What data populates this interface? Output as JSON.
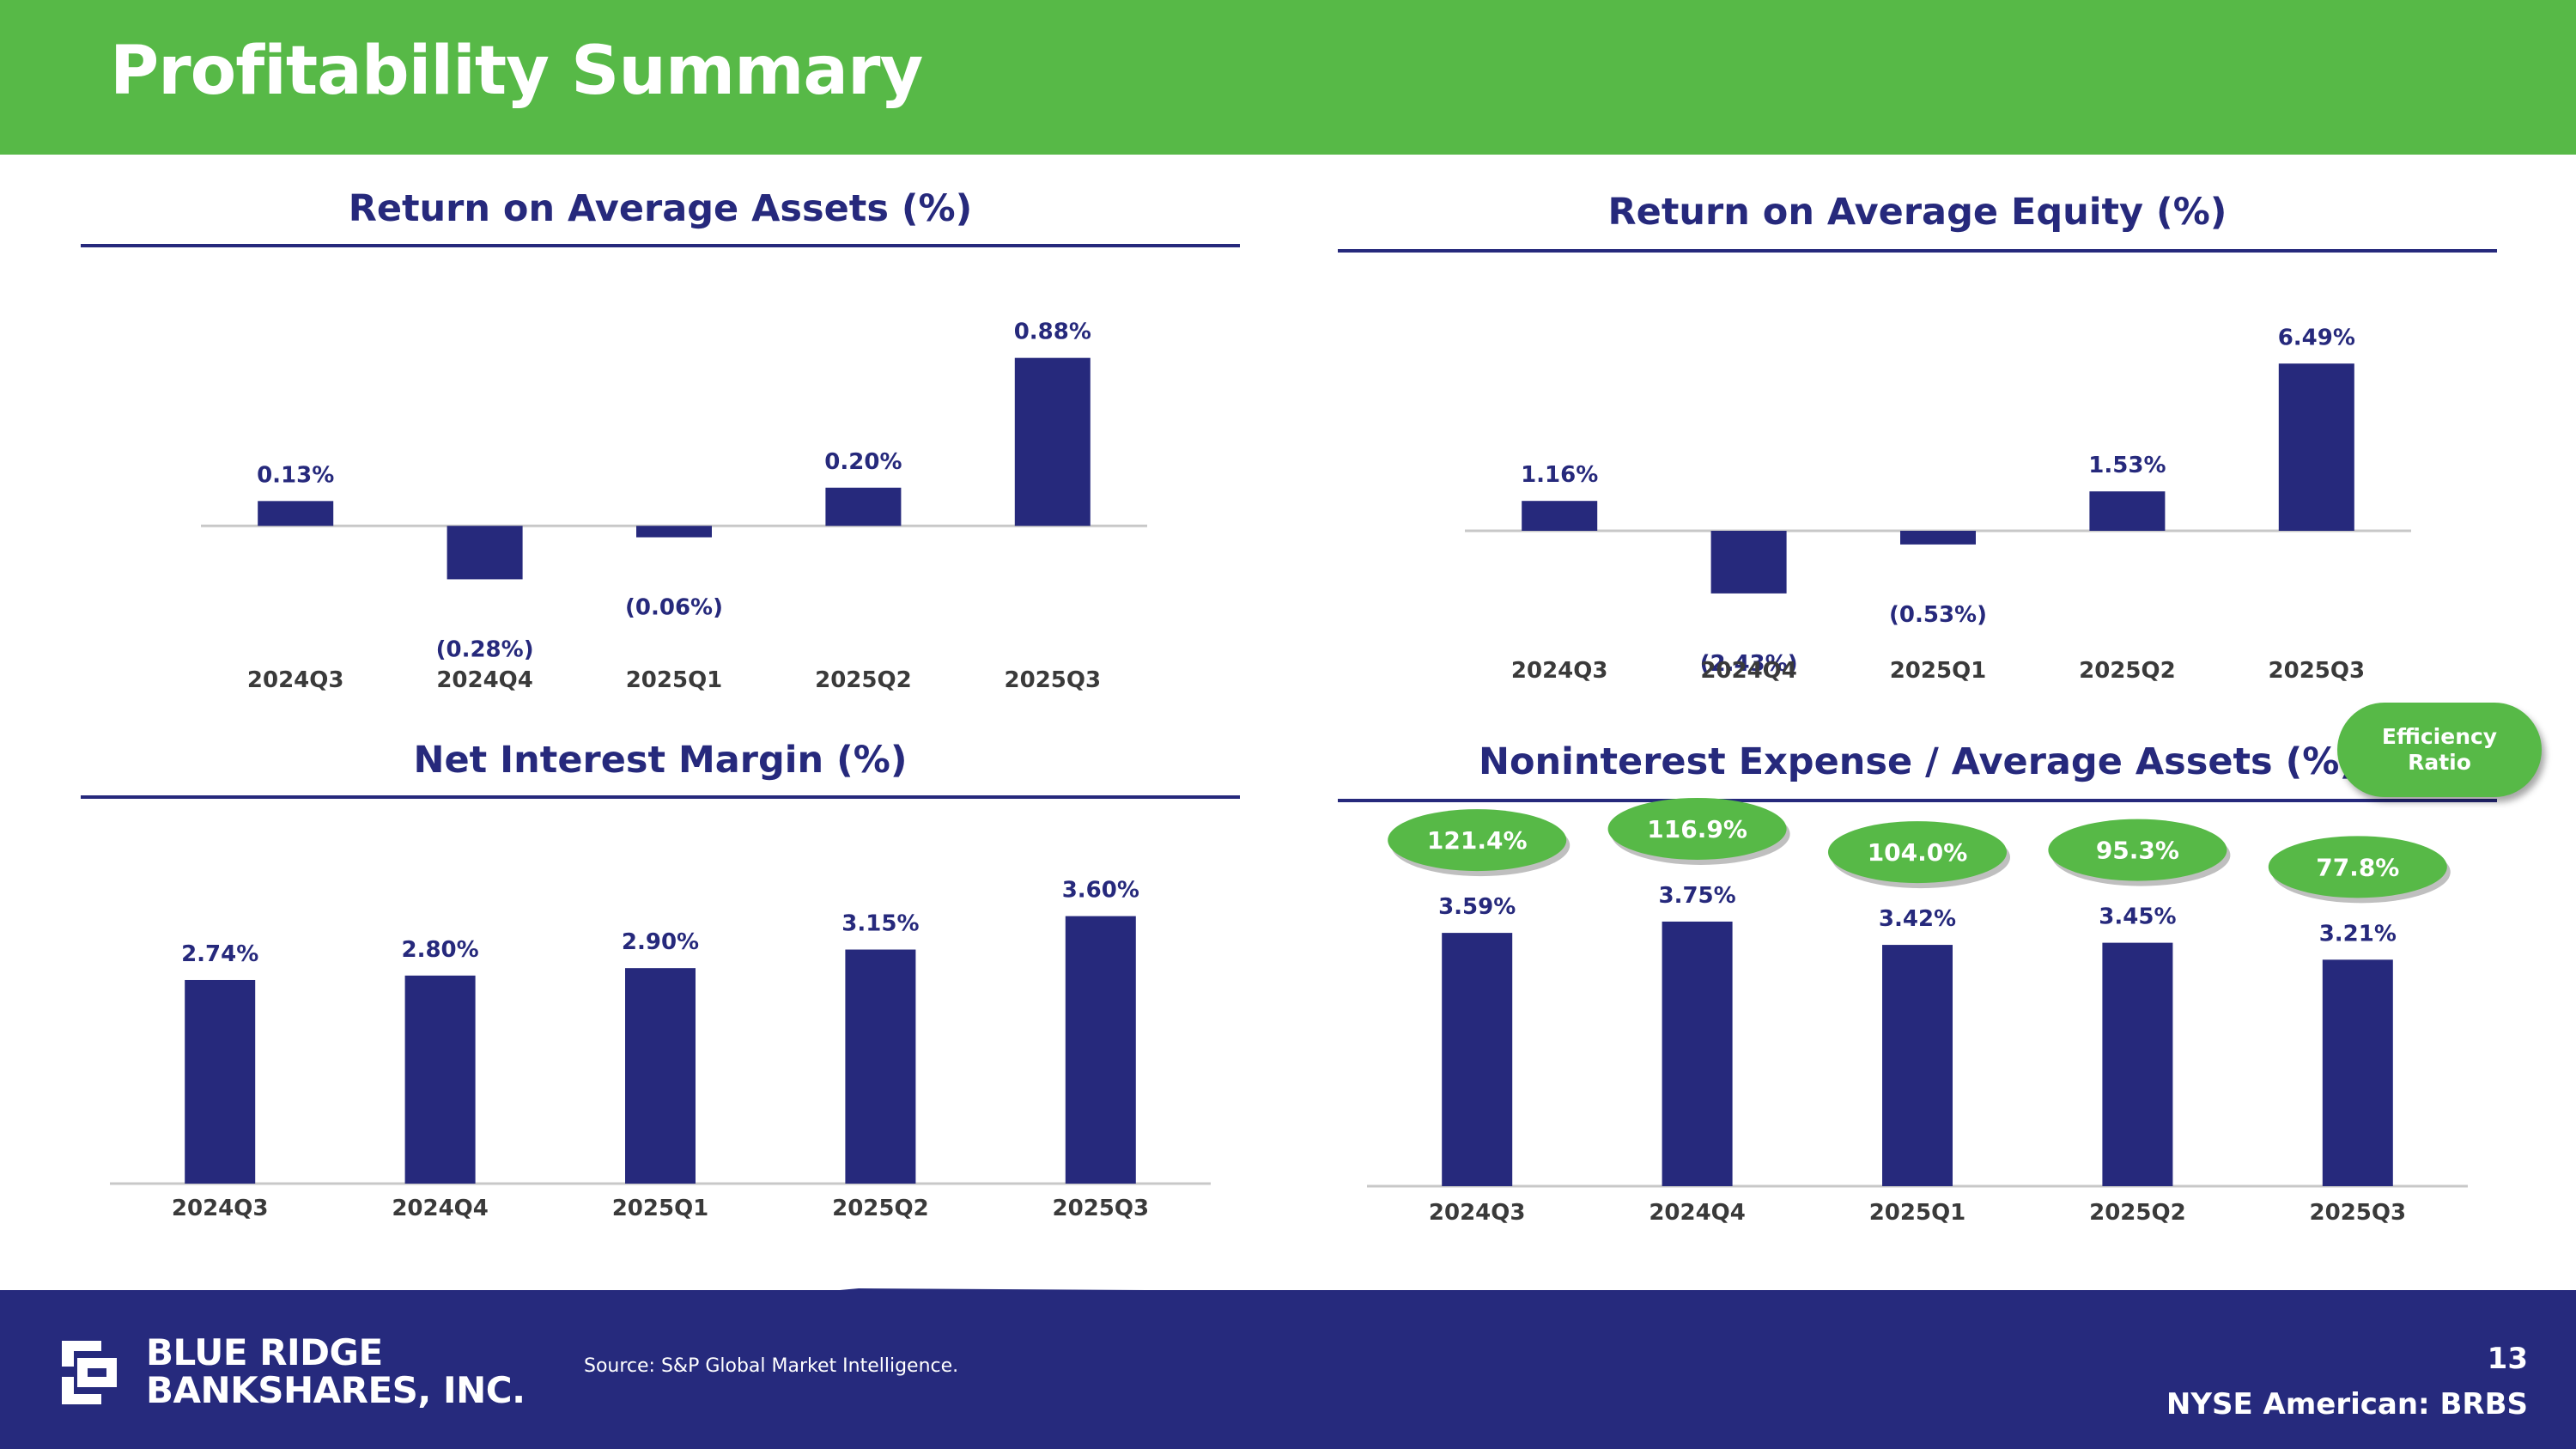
{
  "header": {
    "title": "Profitability Summary"
  },
  "colors": {
    "brand_green": "#57b947",
    "brand_navy": "#26297c",
    "axis_gray": "#c8c8c8",
    "category_text": "#3a3a3a"
  },
  "efficiency_legend": {
    "label_line1": "Efficiency",
    "label_line2": "Ratio"
  },
  "chart_data": [
    {
      "id": "roaa",
      "type": "bar",
      "title": "Return on Average Assets (%)",
      "categories": [
        "2024Q3",
        "2024Q4",
        "2025Q1",
        "2025Q2",
        "2025Q3"
      ],
      "values": [
        0.13,
        -0.28,
        -0.06,
        0.2,
        0.88
      ],
      "labels": [
        "0.13%",
        "(0.28%)",
        "(0.06%)",
        "0.20%",
        "0.88%"
      ],
      "ylim": [
        -0.35,
        1.0
      ]
    },
    {
      "id": "roae",
      "type": "bar",
      "title": "Return on Average Equity (%)",
      "categories": [
        "2024Q3",
        "2024Q4",
        "2025Q1",
        "2025Q2",
        "2025Q3"
      ],
      "values": [
        1.16,
        -2.43,
        -0.53,
        1.53,
        6.49
      ],
      "labels": [
        "1.16%",
        "(2.43%)",
        "(0.53%)",
        "1.53%",
        "6.49%"
      ],
      "ylim": [
        -3.0,
        7.4
      ]
    },
    {
      "id": "nim",
      "type": "bar",
      "title": "Net Interest Margin (%)",
      "categories": [
        "2024Q3",
        "2024Q4",
        "2025Q1",
        "2025Q2",
        "2025Q3"
      ],
      "values": [
        2.74,
        2.8,
        2.9,
        3.15,
        3.6
      ],
      "labels": [
        "2.74%",
        "2.80%",
        "2.90%",
        "3.15%",
        "3.60%"
      ],
      "ylim": [
        0,
        4.0
      ]
    },
    {
      "id": "nie",
      "type": "bar",
      "title": "Noninterest Expense / Average Assets (%)",
      "categories": [
        "2024Q3",
        "2024Q4",
        "2025Q1",
        "2025Q2",
        "2025Q3"
      ],
      "values": [
        3.59,
        3.75,
        3.42,
        3.45,
        3.21
      ],
      "labels": [
        "3.59%",
        "3.75%",
        "3.42%",
        "3.45%",
        "3.21%"
      ],
      "efficiency_ratio": [
        121.4,
        116.9,
        104.0,
        95.3,
        77.8
      ],
      "efficiency_labels": [
        "121.4%",
        "116.9%",
        "104.0%",
        "95.3%",
        "77.8%"
      ],
      "ylim": [
        0,
        4.2
      ]
    }
  ],
  "footer": {
    "company_line1": "BLUE RIDGE",
    "company_line2": "BANKSHARES, INC.",
    "source": "Source: S&P Global Market Intelligence.",
    "page_number": "13",
    "ticker": "NYSE American: BRBS"
  }
}
